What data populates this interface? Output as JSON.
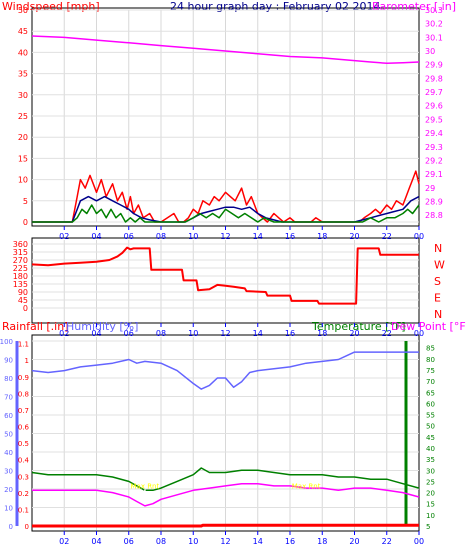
{
  "chart_data": [
    {
      "type": "line",
      "panel": "wind-barometer",
      "title": "24 hour graph day : February 02 2014",
      "left_axis_title": "Windspeed [mph]",
      "right_axis_title": "Barometer [.in]",
      "x_ticks": [
        "02",
        "04",
        "06",
        "08",
        "10",
        "12",
        "14",
        "16",
        "18",
        "20",
        "22",
        "00"
      ],
      "x_range": [
        0,
        24
      ],
      "left_ylim": [
        0,
        50
      ],
      "left_ticks": [
        "0",
        "5",
        "10",
        "15",
        "20",
        "25",
        "30",
        "35",
        "40",
        "45",
        "50"
      ],
      "right_ylim": [
        28.75,
        30.3
      ],
      "right_ticks": [
        "28.8",
        "28.9",
        "29",
        "29.1",
        "29.2",
        "29.3",
        "29.4",
        "29.5",
        "29.6",
        "29.7",
        "29.8",
        "29.9",
        "30",
        "30.1",
        "30.2",
        "30.3"
      ],
      "grid": true,
      "colors": {
        "wind": "#ff0000",
        "wind_avg": "#00008b",
        "wind_low": "#008000",
        "barometer": "#ff00ff",
        "frame": "#000000",
        "grid": "#c8c8c8",
        "tick": "#0000ff"
      },
      "series": [
        {
          "key": "barometer",
          "axis": "right",
          "x": [
            0,
            2,
            4,
            6,
            8,
            10,
            12,
            14,
            16,
            18,
            20,
            21,
            22,
            23,
            24
          ],
          "y": [
            30.11,
            30.1,
            30.08,
            30.06,
            30.04,
            30.02,
            30.0,
            29.98,
            29.96,
            29.95,
            29.93,
            29.92,
            29.91,
            29.915,
            29.92
          ]
        },
        {
          "key": "wind",
          "axis": "left",
          "x": [
            0,
            2.5,
            2.8,
            3,
            3.3,
            3.6,
            4,
            4.3,
            4.6,
            5,
            5.3,
            5.6,
            5.9,
            6.1,
            6.3,
            6.6,
            6.9,
            7.3,
            7.6,
            8,
            8.4,
            8.8,
            9.1,
            9.4,
            9.7,
            10,
            10.3,
            10.6,
            11,
            11.3,
            11.6,
            12,
            12.3,
            12.6,
            13,
            13.3,
            13.6,
            14,
            14.3,
            14.6,
            15,
            15.3,
            15.6,
            16,
            16.3,
            16.6,
            17,
            17.3,
            17.6,
            18,
            18.3,
            18.6,
            19,
            19.3,
            19.6,
            20,
            20.3,
            20.6,
            21,
            21.3,
            21.6,
            22,
            22.3,
            22.6,
            23,
            23.2,
            23.4,
            23.6,
            23.8,
            24
          ],
          "y": [
            0,
            0,
            6,
            10,
            8,
            11,
            7,
            10,
            6,
            9,
            5,
            7,
            3,
            6,
            2,
            4,
            1,
            2,
            0,
            0,
            1,
            2,
            0,
            0,
            1,
            3,
            2,
            5,
            4,
            6,
            5,
            7,
            6,
            5,
            8,
            4,
            6,
            2,
            1,
            0,
            2,
            1,
            0,
            1,
            0,
            0,
            0,
            0,
            1,
            0,
            0,
            0,
            0,
            0,
            0,
            0,
            0,
            1,
            2,
            3,
            2,
            4,
            3,
            5,
            4,
            6,
            8,
            10,
            12,
            9
          ]
        },
        {
          "key": "wind_avg",
          "axis": "left",
          "x": [
            0,
            2.5,
            2.8,
            3,
            3.5,
            4,
            4.5,
            5,
            5.5,
            6,
            6.3,
            6.8,
            7.3,
            8,
            9.5,
            10,
            10.5,
            11,
            11.5,
            12,
            12.5,
            13,
            13.5,
            14,
            14.5,
            15,
            15.5,
            20,
            20.5,
            21,
            21.5,
            22,
            22.5,
            23,
            23.5,
            24
          ],
          "y": [
            0,
            0,
            3,
            5,
            6,
            5,
            6,
            5,
            4,
            3,
            2,
            1,
            0.5,
            0,
            0,
            1,
            2,
            2.5,
            3,
            3.5,
            3.5,
            3,
            3.5,
            2,
            1,
            0.5,
            0,
            0,
            0.5,
            1,
            1.5,
            2,
            2.5,
            3,
            5,
            6
          ]
        },
        {
          "key": "wind_low",
          "axis": "left",
          "x": [
            0,
            2.5,
            2.8,
            3.1,
            3.4,
            3.7,
            4,
            4.3,
            4.6,
            4.9,
            5.2,
            5.5,
            5.8,
            6.1,
            6.4,
            6.7,
            7,
            9.5,
            10,
            10.4,
            10.8,
            11.2,
            11.6,
            12,
            12.4,
            12.8,
            13.2,
            13.6,
            14,
            14.4,
            15,
            20,
            20.5,
            21,
            21.5,
            22,
            22.5,
            23,
            23.3,
            23.6,
            24
          ],
          "y": [
            0,
            0,
            1,
            3,
            2,
            4,
            2,
            3,
            1,
            3,
            1,
            2,
            0,
            1,
            0,
            1,
            0,
            0,
            1,
            2,
            1,
            2,
            1,
            3,
            2,
            1,
            2,
            1,
            0,
            1,
            0,
            0,
            0,
            1,
            0,
            1,
            1,
            2,
            3,
            2,
            4
          ]
        }
      ]
    },
    {
      "type": "line",
      "panel": "wind-direction",
      "x_ticks": [
        "02",
        "04",
        "06",
        "08",
        "10",
        "12",
        "14",
        "16",
        "18",
        "20",
        "22",
        "00"
      ],
      "x_range": [
        0,
        24
      ],
      "ylim": [
        0,
        360
      ],
      "left_ticks": [
        "0",
        "45",
        "90",
        "135",
        "180",
        "225",
        "270",
        "315",
        "360"
      ],
      "right_labels": [
        "N",
        "W",
        "S",
        "E",
        "N"
      ],
      "grid": true,
      "colors": {
        "line": "#ff0000"
      },
      "series": [
        {
          "key": "direction",
          "x": [
            0,
            1,
            2,
            3,
            4,
            4.8,
            5.3,
            5.6,
            5.9,
            6.1,
            6.3,
            7.3,
            7.4,
            9.3,
            9.4,
            10.2,
            10.3,
            11,
            11.5,
            12,
            12.5,
            13.2,
            13.3,
            14.5,
            14.6,
            16,
            16.1,
            17.7,
            17.8,
            20.1,
            20.2,
            21.5,
            21.6,
            24
          ],
          "y": [
            245,
            240,
            250,
            255,
            260,
            270,
            290,
            310,
            340,
            330,
            335,
            335,
            215,
            215,
            155,
            155,
            100,
            105,
            130,
            125,
            120,
            110,
            95,
            90,
            70,
            70,
            40,
            40,
            25,
            25,
            335,
            335,
            300,
            300
          ]
        }
      ]
    },
    {
      "type": "line",
      "panel": "rain-humidity-temperature",
      "rain_title": "Rainfall [.in]",
      "humidity_title": "Humidity [%]",
      "temperature_title": "Temperature [°F]",
      "dewpoint_title": "Dew Point [°F]",
      "x_ticks": [
        "02",
        "04",
        "06",
        "08",
        "10",
        "12",
        "14",
        "16",
        "18",
        "20",
        "22",
        "00"
      ],
      "x_range": [
        0,
        24
      ],
      "rain_ylim": [
        0,
        1.2
      ],
      "rain_ticks": [
        "0",
        "0.1",
        "0.2",
        "0.3",
        "0.4",
        "0.5",
        "0.6",
        "0.7",
        "0.8",
        "0.9",
        "1",
        "1.1"
      ],
      "humidity_ylim": [
        0,
        100
      ],
      "humidity_ticks": [
        "0",
        "10",
        "20",
        "30",
        "40",
        "50",
        "60",
        "70",
        "80",
        "90",
        "100"
      ],
      "temp_ylim": [
        5,
        88
      ],
      "temp_ticks": [
        "5",
        "10",
        "15",
        "20",
        "25",
        "30",
        "35",
        "40",
        "45",
        "50",
        "55",
        "60",
        "65",
        "70",
        "75",
        "80",
        "85"
      ],
      "grid": true,
      "colors": {
        "rain": "#ff0000",
        "humidity": "#6464ff",
        "temperature": "#008000",
        "dewpoint": "#ff00ff",
        "marker": "#ffff00"
      },
      "series": [
        {
          "key": "humidity",
          "x": [
            0,
            1,
            2,
            3,
            4,
            5,
            6,
            6.5,
            7,
            8,
            9,
            10,
            10.5,
            11,
            11.5,
            12,
            12.5,
            13,
            13.5,
            14,
            15,
            16,
            17,
            18,
            19,
            19.5,
            20,
            21,
            22,
            23,
            24
          ],
          "y": [
            84,
            83,
            84,
            86,
            87,
            88,
            90,
            88,
            89,
            88,
            84,
            77,
            74,
            76,
            80,
            80,
            75,
            78,
            83,
            84,
            85,
            86,
            88,
            89,
            90,
            92,
            94,
            94,
            94,
            94,
            94
          ]
        },
        {
          "key": "temperature",
          "x": [
            0,
            1,
            2,
            3,
            4,
            5,
            6,
            6.5,
            7,
            7.5,
            8,
            9,
            10,
            10.5,
            11,
            12,
            13,
            14,
            15,
            16,
            17,
            18,
            19,
            20,
            21,
            22,
            23,
            24
          ],
          "y": [
            29,
            28,
            28,
            28,
            28,
            27,
            25,
            23,
            21,
            21,
            22,
            25,
            28,
            31,
            29,
            29,
            30,
            30,
            29,
            28,
            28,
            28,
            27,
            27,
            26,
            26,
            24,
            22
          ]
        },
        {
          "key": "dewpoint",
          "x": [
            0,
            1,
            2,
            3,
            4,
            5,
            6,
            6.5,
            7,
            7.5,
            8,
            9,
            10,
            11,
            12,
            13,
            14,
            15,
            16,
            17,
            18,
            19,
            20,
            21,
            22,
            23,
            24
          ],
          "y": [
            21,
            21,
            21,
            21,
            21,
            20,
            18,
            16,
            14,
            15,
            17,
            19,
            21,
            22,
            23,
            24,
            24,
            23,
            23,
            22,
            22,
            21,
            22,
            22,
            21,
            20,
            18
          ]
        },
        {
          "key": "rainfall",
          "x": [
            0,
            10.5,
            10.6,
            24
          ],
          "y": [
            0,
            0,
            0.005,
            0.005
          ]
        }
      ],
      "annotations": [
        {
          "label": "Max Rnt",
          "x": 7,
          "value": 0.22
        },
        {
          "label": "Max Rnt",
          "x": 17,
          "value": 0.22
        }
      ]
    }
  ]
}
